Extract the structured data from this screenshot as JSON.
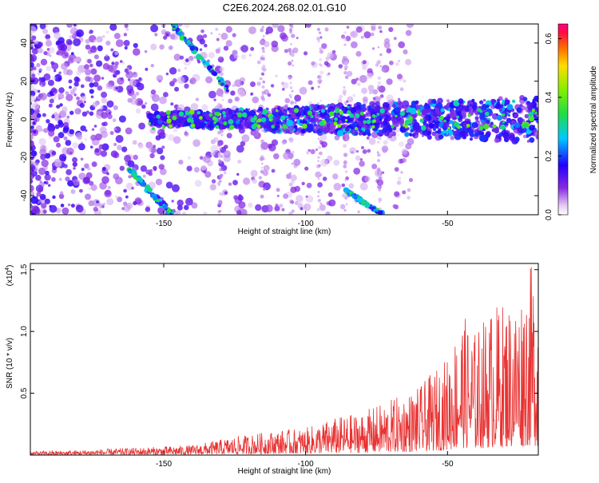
{
  "title": "C2E6.2024.268.02.01.G10",
  "chart_data": [
    {
      "type": "heatmap",
      "title": "C2E6.2024.268.02.01.G10",
      "xlabel": "Height of straight line (km)",
      "ylabel": "Frequency (Hz)",
      "xlim": [
        -197,
        -18
      ],
      "ylim": [
        -50,
        50
      ],
      "x_ticks": [
        -150,
        -100,
        -50
      ],
      "y_ticks": [
        -40,
        -20,
        0,
        20,
        40
      ],
      "colorbar": {
        "label": "Normalized spectral amplitude",
        "range": [
          0.0,
          0.65
        ],
        "ticks": [
          "0.0",
          "0.2",
          "0.4",
          "0.6"
        ],
        "colormap": "rainbow (white-violet-blue-cyan-green-yellow-red-magenta)"
      },
      "features": [
        {
          "description": "horizontal band near 0 Hz",
          "x_range": [
            -155,
            -18
          ],
          "frequency_hz": 0
        },
        {
          "description": "diagonal line",
          "from": [
            -163,
            -25
          ],
          "to": [
            -147,
            -50
          ]
        },
        {
          "description": "diagonal line",
          "from": [
            -147,
            50
          ],
          "to": [
            -127,
            15
          ]
        },
        {
          "description": "diagonal line",
          "from": [
            -86,
            -37
          ],
          "to": [
            -73,
            -50
          ]
        }
      ],
      "grid": false
    },
    {
      "type": "line",
      "xlabel": "Height of straight line (km)",
      "ylabel": "SNR (10 * v/v)",
      "multiplier_label": "(x10",
      "multiplier_exp": "4",
      "xlim": [
        -197,
        -18
      ],
      "ylim": [
        0,
        1.55
      ],
      "x_ticks": [
        -150,
        -100,
        -50
      ],
      "y_ticks": [
        "0.5",
        "1.0",
        "1.5"
      ],
      "series_color": "#e83232",
      "envelope_points": [
        {
          "x": -197,
          "y": 0.03
        },
        {
          "x": -180,
          "y": 0.04
        },
        {
          "x": -160,
          "y": 0.06
        },
        {
          "x": -140,
          "y": 0.08
        },
        {
          "x": -125,
          "y": 0.15
        },
        {
          "x": -110,
          "y": 0.2
        },
        {
          "x": -100,
          "y": 0.22
        },
        {
          "x": -90,
          "y": 0.3
        },
        {
          "x": -80,
          "y": 0.35
        },
        {
          "x": -70,
          "y": 0.45
        },
        {
          "x": -60,
          "y": 0.55
        },
        {
          "x": -50,
          "y": 0.8
        },
        {
          "x": -45,
          "y": 1.15
        },
        {
          "x": -40,
          "y": 1.0
        },
        {
          "x": -35,
          "y": 1.2
        },
        {
          "x": -30,
          "y": 1.25
        },
        {
          "x": -25,
          "y": 1.3
        },
        {
          "x": -22,
          "y": 1.5
        },
        {
          "x": -20,
          "y": 1.55
        },
        {
          "x": -18,
          "y": 1.4
        }
      ],
      "grid": false
    }
  ]
}
